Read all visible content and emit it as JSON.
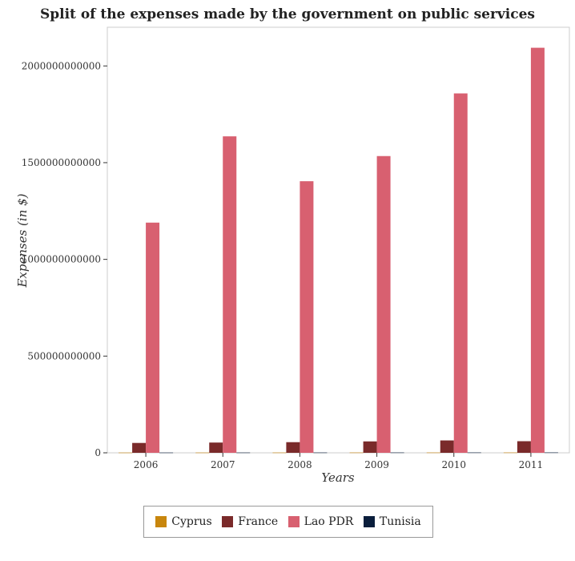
{
  "title": "Split of the expenses made by the government on public services",
  "chart_data": {
    "type": "bar",
    "title": "Split of the expenses made by the government on public services",
    "xlabel": "Years",
    "ylabel": "Expenses (in $)",
    "categories": [
      "2006",
      "2007",
      "2008",
      "2009",
      "2010",
      "2011"
    ],
    "ylim": [
      0,
      2200000000000
    ],
    "yticks": [
      0,
      500000000000,
      1000000000000,
      1500000000000,
      2000000000000
    ],
    "ytick_labels": [
      "0",
      "500000000000",
      "1000000000000",
      "1500000000000",
      "2000000000000"
    ],
    "series": [
      {
        "name": "Cyprus",
        "color": "#c8860d",
        "values": [
          1200000000,
          1300000000,
          1400000000,
          1500000000,
          1500000000,
          1600000000
        ]
      },
      {
        "name": "France",
        "color": "#7a2a2a",
        "values": [
          51000000000,
          53000000000,
          55000000000,
          59000000000,
          64000000000,
          60000000000
        ]
      },
      {
        "name": "Lao PDR",
        "color": "#d86070",
        "values": [
          1190000000000,
          1636000000000,
          1404000000000,
          1534000000000,
          1858000000000,
          2094000000000
        ]
      },
      {
        "name": "Tunisia",
        "color": "#0a1e3c",
        "values": [
          1300000000,
          1400000000,
          1500000000,
          1600000000,
          1700000000,
          1800000000
        ]
      }
    ],
    "legend_position": "bottom",
    "grid": false
  }
}
